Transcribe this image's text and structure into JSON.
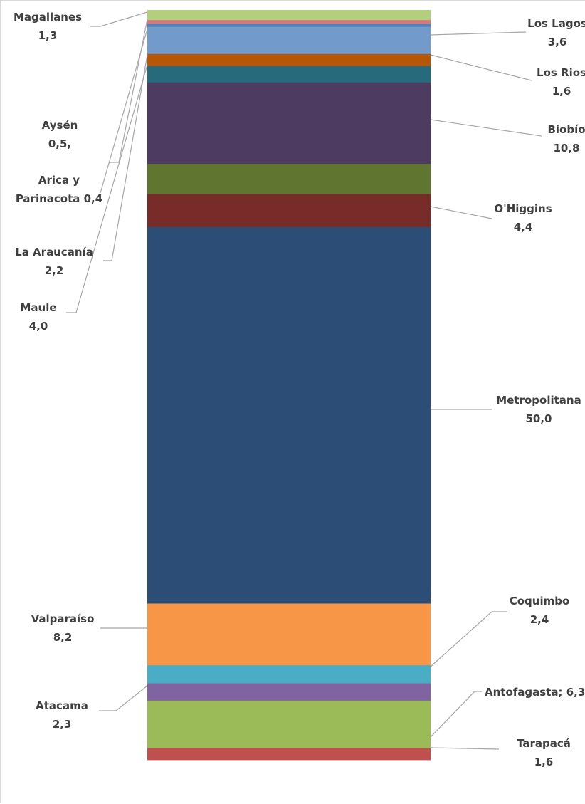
{
  "chart_data": {
    "type": "bar",
    "subtype": "100% stacked column",
    "stack_order": "bottom-to-top",
    "series": [
      {
        "label_lines": [
          "Tarapacá",
          "1,6"
        ],
        "value": 1.6,
        "color": "#c0504d",
        "label_side": "right"
      },
      {
        "label_lines": [
          "Antofagasta; 6,3"
        ],
        "value": 6.3,
        "color": "#9bbb59",
        "label_side": "right"
      },
      {
        "label_lines": [
          "Atacama",
          "2,3"
        ],
        "value": 2.3,
        "color": "#8064a2",
        "label_side": "left"
      },
      {
        "label_lines": [
          "Coquimbo",
          "2,4"
        ],
        "value": 2.4,
        "color": "#4bacc6",
        "label_side": "right"
      },
      {
        "label_lines": [
          "Valparaíso",
          "8,2"
        ],
        "value": 8.2,
        "color": "#f79646",
        "label_side": "left"
      },
      {
        "label_lines": [
          "Metropolitana",
          "50,0"
        ],
        "value": 50.0,
        "color": "#2c4d75",
        "label_side": "right"
      },
      {
        "label_lines": [
          "O'Higgins",
          "4,4"
        ],
        "value": 4.4,
        "color": "#772c2a",
        "label_side": "right"
      },
      {
        "label_lines": [
          "Maule",
          "4,0"
        ],
        "value": 4.0,
        "color": "#5f7530",
        "label_side": "left"
      },
      {
        "label_lines": [
          "Biobío",
          "10,8"
        ],
        "value": 10.8,
        "color": "#4d3b62",
        "label_side": "right"
      },
      {
        "label_lines": [
          "La Araucanía",
          "2,2"
        ],
        "value": 2.2,
        "color": "#276a7c",
        "label_side": "left"
      },
      {
        "label_lines": [
          "Los Rios",
          "1,6"
        ],
        "value": 1.6,
        "color": "#b65708",
        "label_side": "right"
      },
      {
        "label_lines": [
          "Los Lagos",
          "3,6"
        ],
        "value": 3.6,
        "color": "#729aca",
        "label_side": "right"
      },
      {
        "label_lines": [
          "Arica y",
          "Parinacota 0,4"
        ],
        "value": 0.4,
        "color": "#4f81bd",
        "label_side": "left"
      },
      {
        "label_lines": [
          "Aysén",
          "0,5,"
        ],
        "value": 0.5,
        "color": "#d7797a",
        "label_side": "left"
      },
      {
        "label_lines": [
          "Magallanes",
          "1,3"
        ],
        "value": 1.3,
        "color": "#b3cf7e",
        "label_side": "left"
      }
    ],
    "grid": false,
    "legend": "none"
  }
}
